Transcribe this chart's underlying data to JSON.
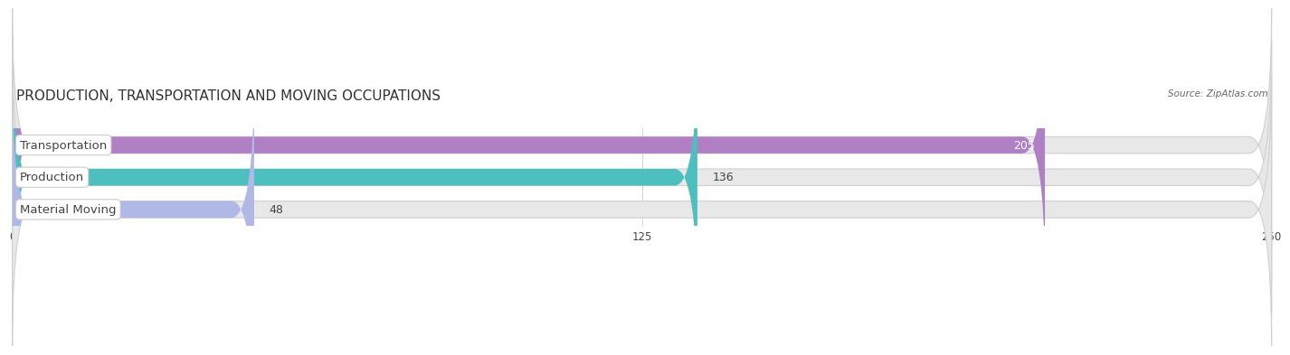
{
  "title": "PRODUCTION, TRANSPORTATION AND MOVING OCCUPATIONS",
  "source": "Source: ZipAtlas.com",
  "categories": [
    "Transportation",
    "Production",
    "Material Moving"
  ],
  "values": [
    205,
    136,
    48
  ],
  "bar_colors": [
    "#b07fc4",
    "#4dbfbf",
    "#b0b8e8"
  ],
  "bar_bg_color": "#e8e8e8",
  "xlim": [
    0,
    250
  ],
  "xticks": [
    0,
    125,
    250
  ],
  "title_fontsize": 11,
  "label_fontsize": 9.5,
  "value_fontsize": 9,
  "background_color": "#ffffff",
  "label_text_color": "#444444",
  "value_color_inside": "#ffffff",
  "value_color_outside": "#444444"
}
